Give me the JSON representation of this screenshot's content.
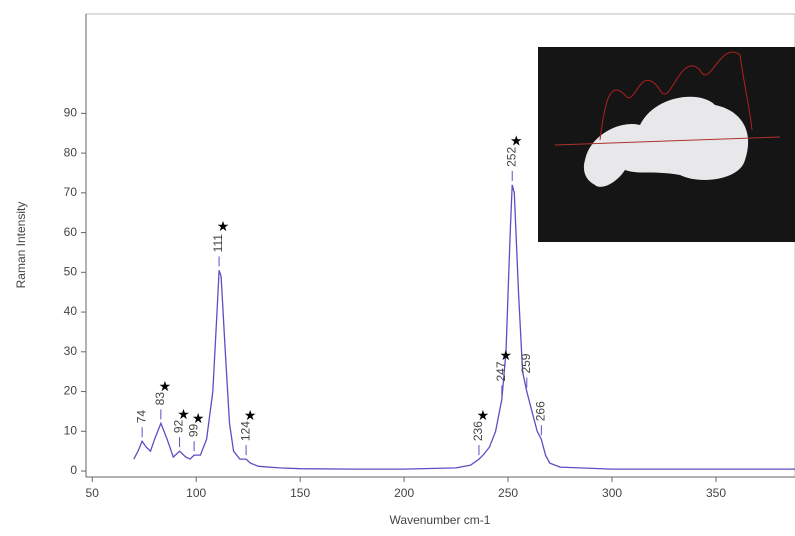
{
  "chart_data": {
    "type": "line",
    "xlabel": "Wavenumber cm-1",
    "ylabel": "Raman Intensity",
    "x": [
      70,
      72,
      74,
      76,
      78,
      80,
      83,
      86,
      89,
      92,
      95,
      97,
      99,
      102,
      105,
      108,
      110,
      111,
      112,
      114,
      116,
      118,
      121,
      124,
      126,
      130,
      140,
      150,
      175,
      200,
      225,
      232,
      236,
      238,
      241,
      244,
      247,
      249,
      251,
      252,
      253,
      255,
      257,
      259,
      262,
      264,
      266,
      268,
      270,
      275,
      300,
      350,
      388
    ],
    "values": [
      3,
      5,
      7.5,
      6,
      5,
      8,
      12,
      8,
      3.5,
      5,
      3.5,
      3,
      4,
      4,
      8,
      20,
      40,
      50.5,
      49,
      30,
      12,
      5,
      3,
      3,
      2,
      1.2,
      0.8,
      0.6,
      0.5,
      0.5,
      0.8,
      1.5,
      3,
      4,
      6,
      10,
      18,
      30,
      60,
      72,
      70,
      45,
      25,
      20,
      14,
      10,
      8,
      4,
      2,
      1,
      0.5,
      0.5,
      0.5
    ],
    "color": "#5b4fc4",
    "xlim": [
      47,
      388
    ],
    "ylim": [
      -1.5,
      115
    ],
    "xticks": [
      50,
      100,
      150,
      200,
      250,
      300,
      350
    ],
    "yticks": [
      0,
      10,
      20,
      30,
      40,
      50,
      60,
      70,
      80,
      90
    ],
    "peaks": [
      74,
      83,
      92,
      99,
      111,
      124,
      236,
      247,
      252,
      259,
      266
    ],
    "starred_peaks": [
      83,
      92,
      99,
      111,
      124,
      236,
      247,
      252
    ],
    "star_symbol": "★"
  }
}
